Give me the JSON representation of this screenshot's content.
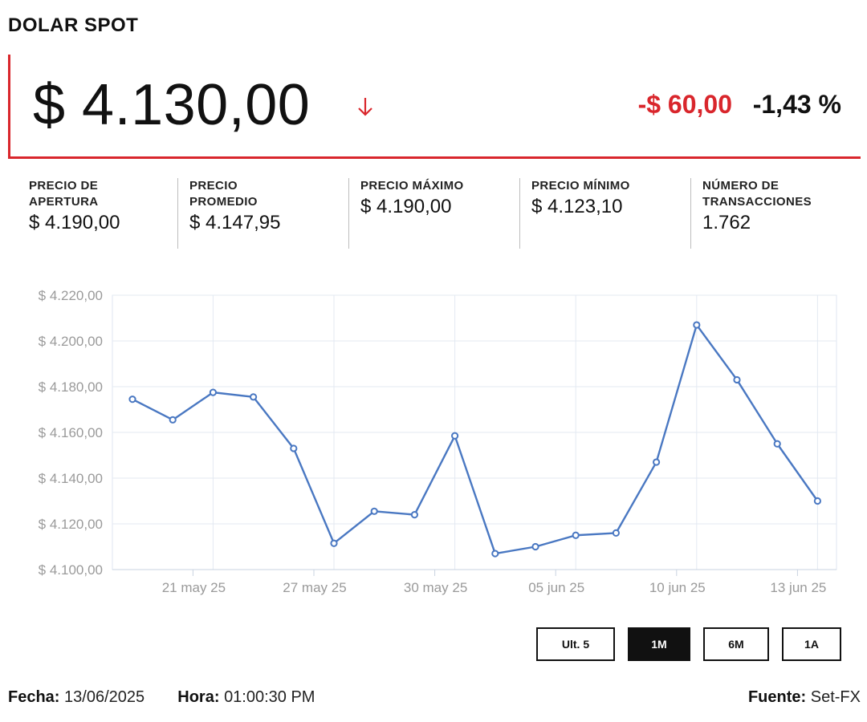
{
  "header": {
    "title": "DOLAR SPOT"
  },
  "price": {
    "current": "$ 4.130,00",
    "change_abs": "-$ 60,00",
    "change_pct": "-1,43 %",
    "direction_icon": "arrow-down-icon",
    "down_color": "#d9262c"
  },
  "stats": [
    {
      "label": "PRECIO DE\nAPERTURA",
      "value": "$ 4.190,00"
    },
    {
      "label": "PRECIO\nPROMEDIO",
      "value": "$ 4.147,95"
    },
    {
      "label": "PRECIO MÁXIMO",
      "value": "$ 4.190,00"
    },
    {
      "label": "PRECIO MÍNIMO",
      "value": "$ 4.123,10"
    },
    {
      "label": "NÚMERO DE\nTRANSACCIONES",
      "value": "1.762"
    }
  ],
  "chart_data": {
    "type": "line",
    "x_tick_labels": [
      "21 may 25",
      "27 may 25",
      "30 may 25",
      "05 jun 25",
      "10 jun 25",
      "13 jun 25"
    ],
    "y_tick_labels": [
      "$ 4.220,00",
      "$ 4.200,00",
      "$ 4.180,00",
      "$ 4.160,00",
      "$ 4.140,00",
      "$ 4.120,00",
      "$ 4.100,00"
    ],
    "ylim": [
      4100,
      4220
    ],
    "y_ticks": [
      4220,
      4200,
      4180,
      4160,
      4140,
      4120,
      4100
    ],
    "grid": true,
    "line_color": "#4a78c2",
    "series": [
      {
        "values": [
          4174.5,
          4165.5,
          4177.5,
          4175.5,
          4153,
          4111.5,
          4125.5,
          4124,
          4158.5,
          4107,
          4110,
          4115,
          4116,
          4147,
          4207,
          4183,
          4155,
          4130
        ]
      }
    ]
  },
  "ranges": [
    {
      "label": "Ult. 5",
      "active": false
    },
    {
      "label": "1M",
      "active": true
    },
    {
      "label": "6M",
      "active": false
    },
    {
      "label": "1A",
      "active": false
    }
  ],
  "footer": {
    "date_label": "Fecha:",
    "date_value": "13/06/2025",
    "time_label": "Hora:",
    "time_value": "01:00:30 PM",
    "source_label": "Fuente:",
    "source_value": "Set-FX"
  }
}
